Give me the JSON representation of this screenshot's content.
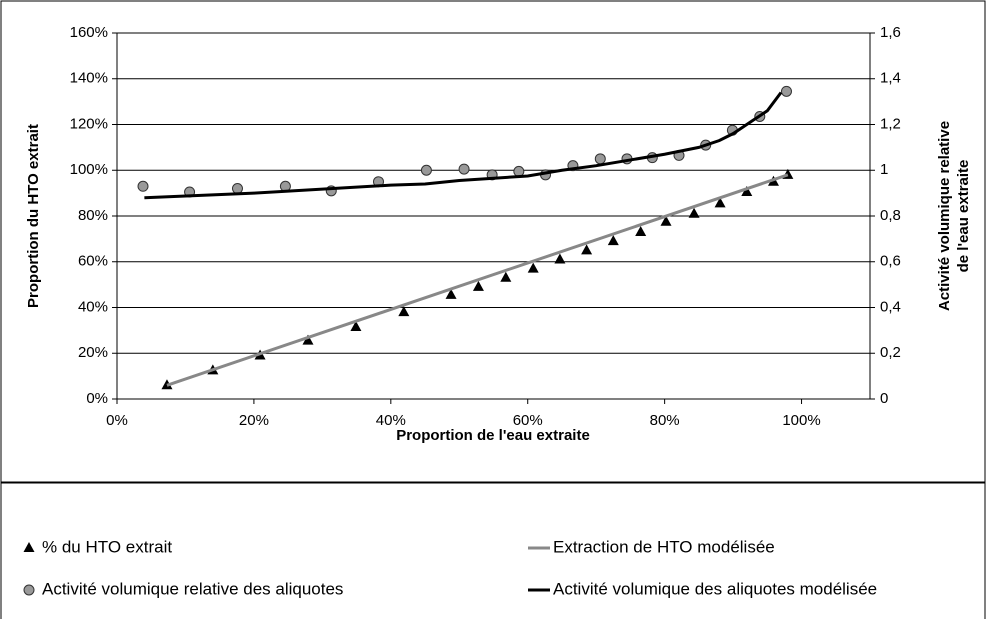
{
  "chart_data": {
    "type": "combo",
    "xlabel": "Proportion de l'eau extraite",
    "ylabel": "Proportion du HTO extrait",
    "y2label": [
      "Activité volumique relative",
      "de l'eau extraite"
    ],
    "xlim": [
      0,
      110
    ],
    "xticks": [
      {
        "value": 0,
        "label": "0%"
      },
      {
        "value": 20,
        "label": "20%"
      },
      {
        "value": 40,
        "label": "40%"
      },
      {
        "value": 60,
        "label": "60%"
      },
      {
        "value": 80,
        "label": "80%"
      },
      {
        "value": 100,
        "label": "100%"
      }
    ],
    "ylim": [
      0,
      160
    ],
    "yticks": [
      {
        "value": 0,
        "label": "0%"
      },
      {
        "value": 20,
        "label": "20%"
      },
      {
        "value": 40,
        "label": "40%"
      },
      {
        "value": 60,
        "label": "60%"
      },
      {
        "value": 80,
        "label": "80%"
      },
      {
        "value": 100,
        "label": "100%"
      },
      {
        "value": 120,
        "label": "120%"
      },
      {
        "value": 140,
        "label": "140%"
      },
      {
        "value": 160,
        "label": "160%"
      }
    ],
    "y2lim": [
      0,
      1.6
    ],
    "y2ticks": [
      0,
      {
        "value": 0.2,
        "label": "0,2"
      },
      {
        "value": 0.4,
        "label": "0,4"
      },
      {
        "value": 0.6,
        "label": "0,6"
      },
      {
        "value": 0.8,
        "label": "0,8"
      },
      1,
      {
        "value": 1.2,
        "label": "1,2"
      },
      {
        "value": 1.4,
        "label": "1,4"
      },
      {
        "value": 1.6,
        "label": "1,6"
      }
    ],
    "grid": true,
    "legend": "bottom",
    "series": [
      {
        "name": "% du HTO extrait",
        "kind": "marker",
        "marker": "triangle",
        "color": "#000000",
        "axis": "y",
        "x": [
          7.3,
          14,
          20.9,
          27.9,
          34.9,
          41.9,
          48.8,
          52.8,
          56.8,
          60.8,
          64.7,
          68.6,
          72.5,
          76.5,
          80.2,
          84.3,
          88.1,
          92,
          95.9,
          98
        ],
        "values": [
          6,
          12.5,
          19,
          25.5,
          31.5,
          38,
          45.5,
          49,
          53,
          57,
          61,
          65,
          69,
          73,
          77.5,
          81,
          85.5,
          90.5,
          95,
          98
        ]
      },
      {
        "name": "Extraction de HTO modélisée",
        "kind": "line",
        "color": "#888888",
        "axis": "y",
        "x": [
          7.3,
          98
        ],
        "values": [
          6,
          98
        ]
      },
      {
        "name": "Activité volumique relative des aliquotes",
        "kind": "marker",
        "marker": "circle",
        "color": "#999999",
        "axis": "y2",
        "x": [
          3.8,
          10.6,
          17.6,
          24.6,
          31.3,
          38.2,
          45.2,
          50.7,
          54.8,
          58.7,
          62.6,
          66.6,
          70.6,
          74.5,
          78.2,
          82.1,
          86,
          89.9,
          93.9,
          97.8
        ],
        "values": [
          0.93,
          0.905,
          0.92,
          0.93,
          0.91,
          0.95,
          1.0,
          1.005,
          0.98,
          0.995,
          0.98,
          1.02,
          1.05,
          1.05,
          1.055,
          1.065,
          1.11,
          1.175,
          1.235,
          1.345
        ]
      },
      {
        "name": "Activité volumique des aliquotes modélisée",
        "kind": "line",
        "color": "#000000",
        "axis": "y2",
        "x": [
          4,
          20,
          40,
          45,
          50,
          60,
          65,
          70,
          75,
          80,
          85,
          88,
          90,
          93,
          95,
          97
        ],
        "values": [
          0.88,
          0.9,
          0.935,
          0.94,
          0.955,
          0.975,
          1.0,
          1.02,
          1.045,
          1.07,
          1.1,
          1.13,
          1.16,
          1.22,
          1.26,
          1.34
        ]
      }
    ]
  }
}
